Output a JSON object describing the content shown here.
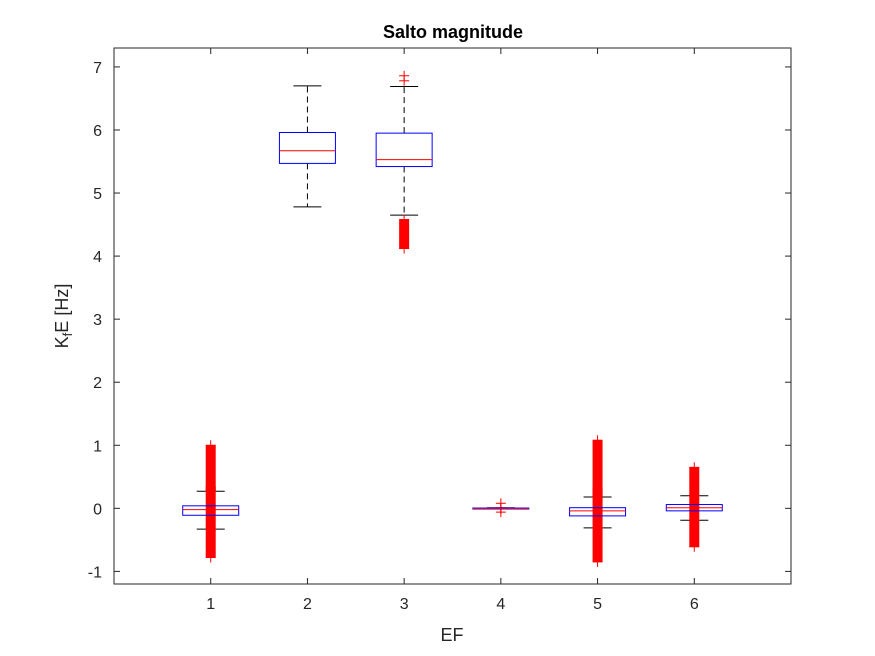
{
  "chart_data": {
    "type": "boxplot",
    "title": "Salto magnitude",
    "xlabel": "EF",
    "ylabel": {
      "main": "K",
      "sub": "f",
      "rest": "E [Hz]"
    },
    "categories": [
      "1",
      "2",
      "3",
      "4",
      "5",
      "6"
    ],
    "ylim": [
      -1.2,
      7.3
    ],
    "yticks": [
      -1,
      0,
      1,
      2,
      3,
      4,
      5,
      6,
      7
    ],
    "grid": false,
    "colors": {
      "box": "#0000ff",
      "median": "#ff0000",
      "whisker": "#000000",
      "outlier": "#ff0000",
      "axis": "#262626"
    },
    "boxes": [
      {
        "category": "1",
        "q1": -0.11,
        "median": -0.02,
        "q3": 0.04,
        "whisker_low": -0.33,
        "whisker_high": 0.27,
        "outliers_low": [
          -0.78,
          0.34
        ],
        "outliers_high": [
          0.28,
          1.0
        ]
      },
      {
        "category": "2",
        "q1": 5.47,
        "median": 5.67,
        "q3": 5.96,
        "whisker_low": 4.78,
        "whisker_high": 6.7,
        "outliers_low": null,
        "outliers_high": null
      },
      {
        "category": "3",
        "q1": 5.42,
        "median": 5.53,
        "q3": 5.95,
        "whisker_low": 4.65,
        "whisker_high": 6.69,
        "outliers_low": [
          4.12,
          4.58
        ],
        "outliers_high": [
          6.78,
          6.86
        ]
      },
      {
        "category": "4",
        "q1": -0.005,
        "median": 0.0,
        "q3": 0.005,
        "whisker_low": -0.01,
        "whisker_high": 0.01,
        "outliers_low": [
          -0.06,
          -0.01
        ],
        "outliers_high": [
          0.01,
          0.08
        ]
      },
      {
        "category": "5",
        "q1": -0.12,
        "median": -0.04,
        "q3": 0.01,
        "whisker_low": -0.31,
        "whisker_high": 0.18,
        "outliers_low": [
          -0.85,
          0.32
        ],
        "outliers_high": [
          0.19,
          1.08
        ]
      },
      {
        "category": "6",
        "q1": -0.04,
        "median": 0.01,
        "q3": 0.06,
        "whisker_low": -0.19,
        "whisker_high": 0.2,
        "outliers_low": [
          -0.61,
          0.2
        ],
        "outliers_high": [
          0.21,
          0.65
        ]
      }
    ]
  }
}
